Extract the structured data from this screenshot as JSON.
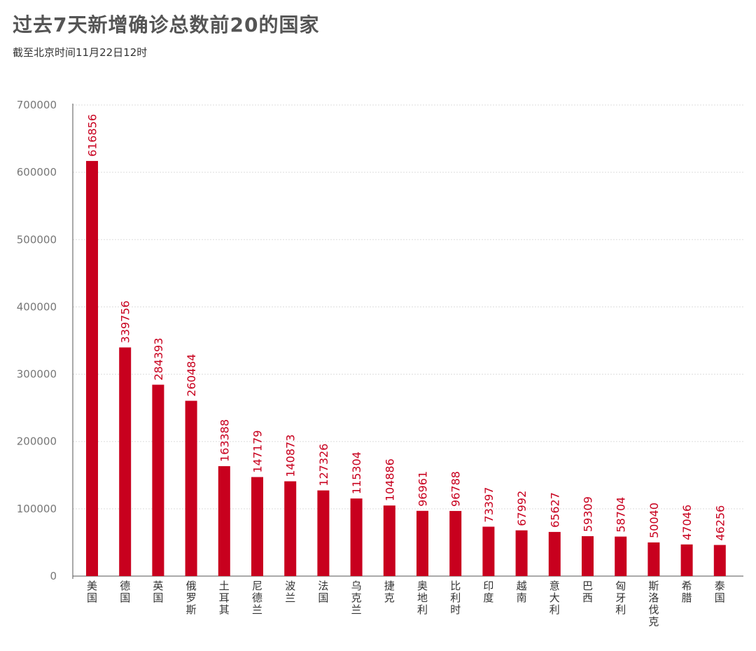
{
  "header": {
    "title": "过去7天新增确诊总数前20的国家",
    "subtitle": "截至北京时间11月22日12时"
  },
  "colors": {
    "bar": "#c8001e",
    "grid": "#dddddd",
    "axis": "#555555"
  },
  "chart_data": {
    "type": "bar",
    "title": "过去7天新增确诊总数前20的国家",
    "subtitle": "截至北京时间11月22日12时",
    "xlabel": "",
    "ylabel": "",
    "ylim": [
      0,
      700000
    ],
    "yticks": [
      0,
      100000,
      200000,
      300000,
      400000,
      500000,
      600000,
      700000
    ],
    "grid": true,
    "categories": [
      "美国",
      "德国",
      "英国",
      "俄罗斯",
      "土耳其",
      "尼德兰",
      "波兰",
      "法国",
      "乌克兰",
      "捷克",
      "奥地利",
      "比利时",
      "印度",
      "越南",
      "意大利",
      "巴西",
      "匈牙利",
      "斯洛伐克",
      "希腊",
      "泰国"
    ],
    "values": [
      616856,
      339756,
      284393,
      260484,
      163388,
      147179,
      140873,
      127326,
      115304,
      104886,
      96961,
      96788,
      73397,
      67992,
      65627,
      59309,
      58704,
      50040,
      47046,
      46256
    ]
  }
}
